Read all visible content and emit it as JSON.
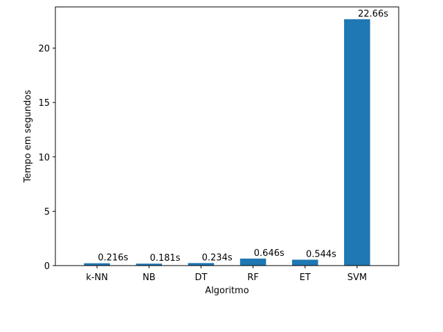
{
  "chart_data": {
    "type": "bar",
    "categories": [
      "k-NN",
      "NB",
      "DT",
      "RF",
      "ET",
      "SVM"
    ],
    "values": [
      0.216,
      0.181,
      0.234,
      0.646,
      0.544,
      22.66
    ],
    "data_labels": [
      "0.216s",
      "0.181s",
      "0.234s",
      "0.646s",
      "0.544s",
      "22.66s"
    ],
    "xlabel": "Algoritmo",
    "ylabel": "Tempo em segundos",
    "ylim": [
      0,
      23.79
    ],
    "yticks": [
      0,
      5,
      10,
      15,
      20
    ],
    "grid": false,
    "bar_color": "#1f77b4"
  }
}
